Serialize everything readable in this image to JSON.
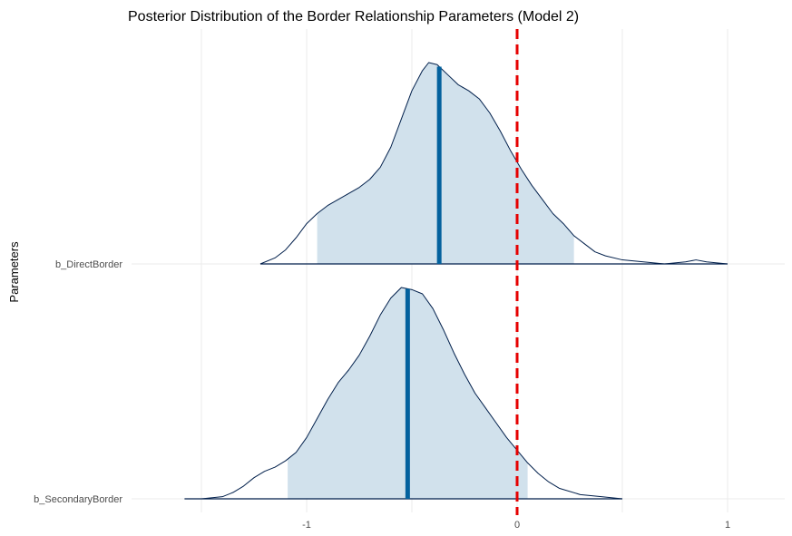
{
  "chart_data": {
    "type": "area",
    "title": "Posterior Distribution of the Border Relationship Parameters (Model 2)",
    "xlabel": "",
    "ylabel": "Parameters",
    "xlim": [
      -1.55,
      1.25
    ],
    "x_ticks": [
      -1,
      0,
      1
    ],
    "x_tick_labels": [
      "-1",
      "0",
      "1"
    ],
    "grid": true,
    "reference_line": {
      "x": 0,
      "color": "#e60000",
      "style": "dashed"
    },
    "colors": {
      "fill": "#d1e1ec",
      "outline": "#011f4b",
      "median": "#03619e"
    },
    "series": [
      {
        "name": "b_DirectBorder",
        "median": -0.37,
        "interval": [
          -0.95,
          0.27
        ],
        "density": [
          [
            -1.22,
            0.0
          ],
          [
            -1.15,
            0.03
          ],
          [
            -1.1,
            0.07
          ],
          [
            -1.05,
            0.13
          ],
          [
            -1.0,
            0.2
          ],
          [
            -0.95,
            0.25
          ],
          [
            -0.9,
            0.29
          ],
          [
            -0.85,
            0.32
          ],
          [
            -0.8,
            0.35
          ],
          [
            -0.75,
            0.38
          ],
          [
            -0.7,
            0.42
          ],
          [
            -0.65,
            0.48
          ],
          [
            -0.6,
            0.58
          ],
          [
            -0.55,
            0.72
          ],
          [
            -0.5,
            0.86
          ],
          [
            -0.45,
            0.96
          ],
          [
            -0.42,
            1.0
          ],
          [
            -0.38,
            0.99
          ],
          [
            -0.33,
            0.94
          ],
          [
            -0.28,
            0.89
          ],
          [
            -0.23,
            0.86
          ],
          [
            -0.18,
            0.82
          ],
          [
            -0.13,
            0.75
          ],
          [
            -0.08,
            0.66
          ],
          [
            -0.03,
            0.56
          ],
          [
            0.02,
            0.47
          ],
          [
            0.07,
            0.39
          ],
          [
            0.12,
            0.32
          ],
          [
            0.17,
            0.25
          ],
          [
            0.22,
            0.2
          ],
          [
            0.27,
            0.14
          ],
          [
            0.32,
            0.1
          ],
          [
            0.37,
            0.06
          ],
          [
            0.42,
            0.04
          ],
          [
            0.5,
            0.02
          ],
          [
            0.6,
            0.01
          ],
          [
            0.7,
            0.0
          ],
          [
            0.8,
            0.01
          ],
          [
            0.85,
            0.02
          ],
          [
            0.9,
            0.01
          ],
          [
            1.0,
            0.0
          ]
        ]
      },
      {
        "name": "b_SecondaryBorder",
        "median": -0.52,
        "interval": [
          -1.09,
          0.05
        ],
        "density": [
          [
            -1.58,
            0.0
          ],
          [
            -1.5,
            0.0
          ],
          [
            -1.4,
            0.01
          ],
          [
            -1.35,
            0.03
          ],
          [
            -1.3,
            0.06
          ],
          [
            -1.25,
            0.1
          ],
          [
            -1.2,
            0.13
          ],
          [
            -1.15,
            0.15
          ],
          [
            -1.1,
            0.18
          ],
          [
            -1.05,
            0.22
          ],
          [
            -1.0,
            0.29
          ],
          [
            -0.95,
            0.38
          ],
          [
            -0.9,
            0.47
          ],
          [
            -0.85,
            0.55
          ],
          [
            -0.8,
            0.61
          ],
          [
            -0.75,
            0.68
          ],
          [
            -0.7,
            0.77
          ],
          [
            -0.65,
            0.87
          ],
          [
            -0.6,
            0.95
          ],
          [
            -0.55,
            1.0
          ],
          [
            -0.5,
            0.99
          ],
          [
            -0.45,
            0.97
          ],
          [
            -0.4,
            0.9
          ],
          [
            -0.35,
            0.8
          ],
          [
            -0.3,
            0.69
          ],
          [
            -0.25,
            0.59
          ],
          [
            -0.2,
            0.5
          ],
          [
            -0.15,
            0.43
          ],
          [
            -0.1,
            0.36
          ],
          [
            -0.05,
            0.29
          ],
          [
            0.0,
            0.23
          ],
          [
            0.05,
            0.17
          ],
          [
            0.1,
            0.12
          ],
          [
            0.15,
            0.08
          ],
          [
            0.2,
            0.05
          ],
          [
            0.3,
            0.02
          ],
          [
            0.4,
            0.01
          ],
          [
            0.5,
            0.0
          ]
        ]
      }
    ]
  }
}
